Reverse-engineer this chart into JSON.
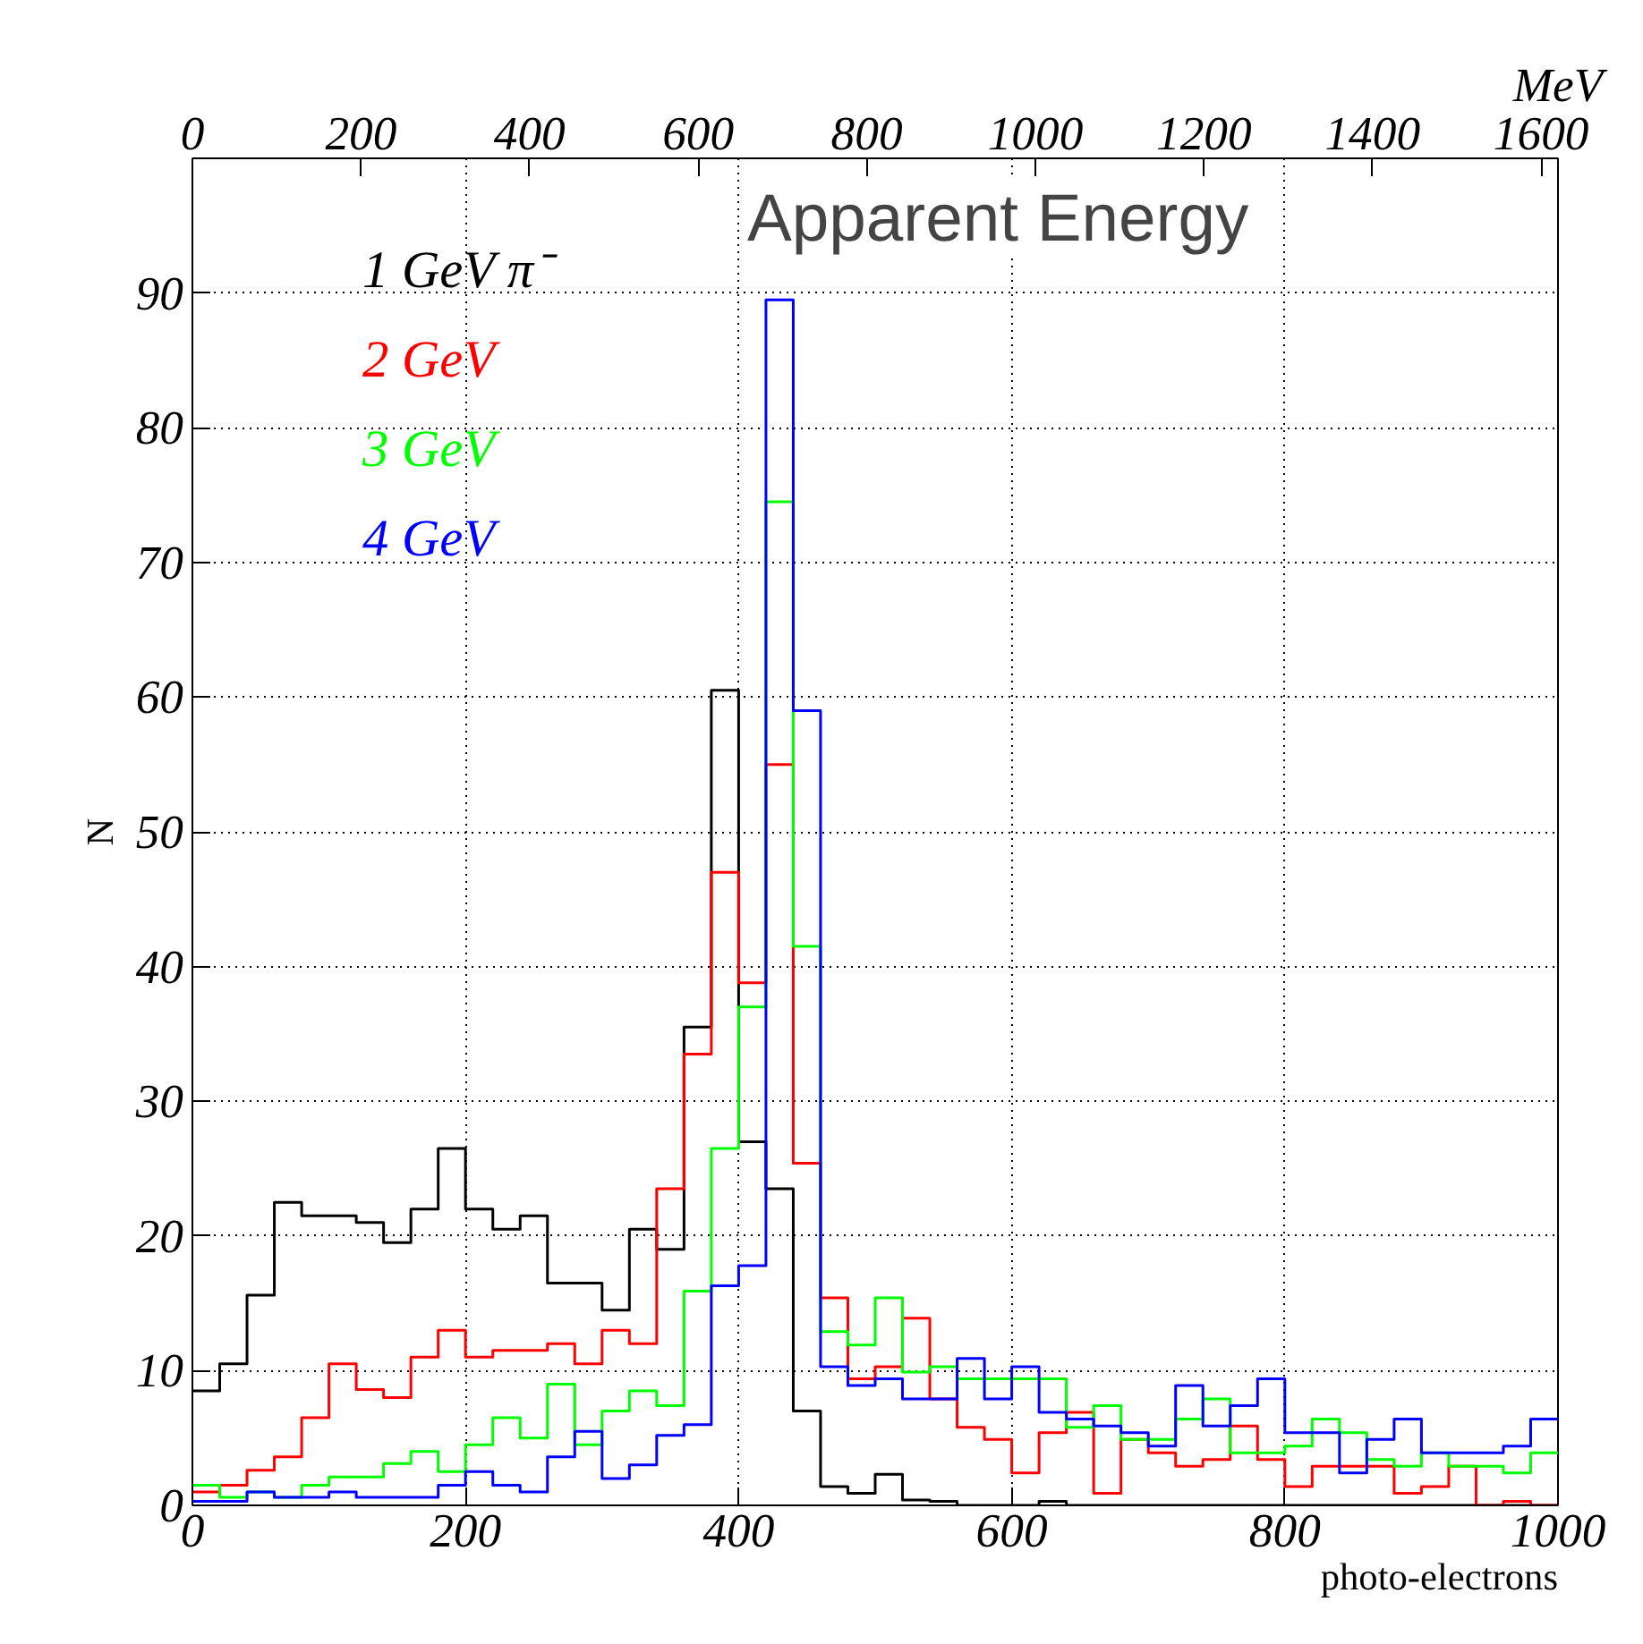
{
  "chart_data": {
    "type": "histogram",
    "title": "Apparent Energy",
    "xlabel": "photo-electrons",
    "ylabel": "N",
    "x2label": "MeV",
    "bins": [
      0,
      20,
      40,
      60,
      80,
      100,
      120,
      140,
      160,
      180,
      200,
      220,
      240,
      260,
      280,
      300,
      320,
      340,
      360,
      380,
      400,
      420,
      440,
      460,
      480,
      500,
      520,
      540,
      560,
      580,
      600,
      620,
      640,
      660,
      680,
      700,
      720,
      740,
      760,
      780,
      800,
      820,
      840,
      860,
      880,
      900,
      920,
      940,
      960,
      980,
      1000
    ],
    "series": [
      {
        "name": "1 GeV π⁻",
        "color": "#000000",
        "values": [
          8.5,
          10.5,
          15.6,
          22.5,
          21.5,
          21.5,
          21.0,
          19.5,
          22.0,
          26.5,
          22.0,
          20.5,
          21.5,
          16.5,
          16.5,
          14.5,
          20.5,
          19.0,
          35.5,
          60.5,
          27.0,
          23.5,
          7.0,
          1.4,
          0.9,
          2.3,
          0.4,
          0.3,
          0,
          0,
          0,
          0.3,
          0,
          0,
          0,
          0,
          0,
          0,
          0,
          0,
          0,
          0,
          0,
          0,
          0,
          0,
          0,
          0,
          0,
          0
        ]
      },
      {
        "name": "2 GeV",
        "color": "#ff0000",
        "values": [
          1.0,
          1.5,
          2.6,
          3.6,
          6.5,
          10.5,
          8.6,
          8.0,
          11.0,
          13.0,
          11.0,
          11.5,
          11.5,
          12.0,
          10.5,
          13.0,
          12.0,
          23.5,
          33.5,
          47.0,
          38.8,
          55.0,
          25.4,
          15.4,
          9.4,
          10.3,
          13.9,
          7.9,
          5.8,
          4.9,
          2.4,
          5.4,
          6.9,
          0.9,
          4.9,
          3.9,
          2.9,
          3.4,
          5.9,
          3.4,
          1.4,
          2.9,
          2.9,
          2.9,
          0.9,
          1.4,
          2.9,
          0,
          0.3,
          0
        ]
      },
      {
        "name": "3 GeV",
        "color": "#00ff00",
        "values": [
          1.5,
          0.6,
          1.0,
          0.6,
          1.5,
          2.1,
          2.1,
          3.1,
          4.0,
          2.5,
          4.5,
          6.5,
          5.0,
          9.0,
          4.5,
          7.0,
          8.5,
          7.4,
          15.9,
          26.5,
          37.0,
          74.5,
          41.5,
          12.9,
          11.9,
          15.4,
          9.9,
          10.3,
          9.4,
          9.4,
          9.4,
          9.4,
          5.8,
          7.4,
          4.9,
          4.9,
          6.4,
          7.9,
          3.9,
          3.9,
          4.4,
          6.4,
          5.4,
          3.4,
          2.9,
          3.9,
          2.9,
          2.9,
          2.4,
          3.9
        ]
      },
      {
        "name": "4 GeV",
        "color": "#0000ff",
        "values": [
          0.3,
          0.3,
          1.0,
          0.6,
          0.6,
          1.0,
          0.6,
          0.6,
          0.6,
          1.5,
          2.5,
          1.5,
          1.0,
          3.6,
          5.5,
          2.0,
          3.0,
          5.2,
          6.0,
          16.3,
          17.8,
          89.5,
          59.0,
          10.3,
          8.9,
          9.4,
          7.9,
          7.9,
          10.9,
          7.9,
          10.3,
          6.9,
          6.4,
          5.9,
          5.4,
          4.4,
          8.9,
          5.9,
          7.4,
          9.4,
          5.4,
          5.4,
          2.4,
          4.9,
          6.4,
          3.9,
          3.9,
          3.9,
          4.4,
          6.4
        ]
      }
    ],
    "xlim": [
      0,
      1000
    ],
    "xticks": [
      0,
      200,
      400,
      600,
      800,
      1000
    ],
    "ylim": [
      0,
      100
    ],
    "yticks": [
      0,
      10,
      20,
      30,
      40,
      50,
      60,
      70,
      80,
      90
    ],
    "x2lim": [
      0,
      1620
    ],
    "x2ticks": [
      0,
      200,
      400,
      600,
      800,
      1000,
      1200,
      1400,
      1600
    ],
    "grid": true,
    "legend": "top left",
    "line_style": "solid"
  }
}
